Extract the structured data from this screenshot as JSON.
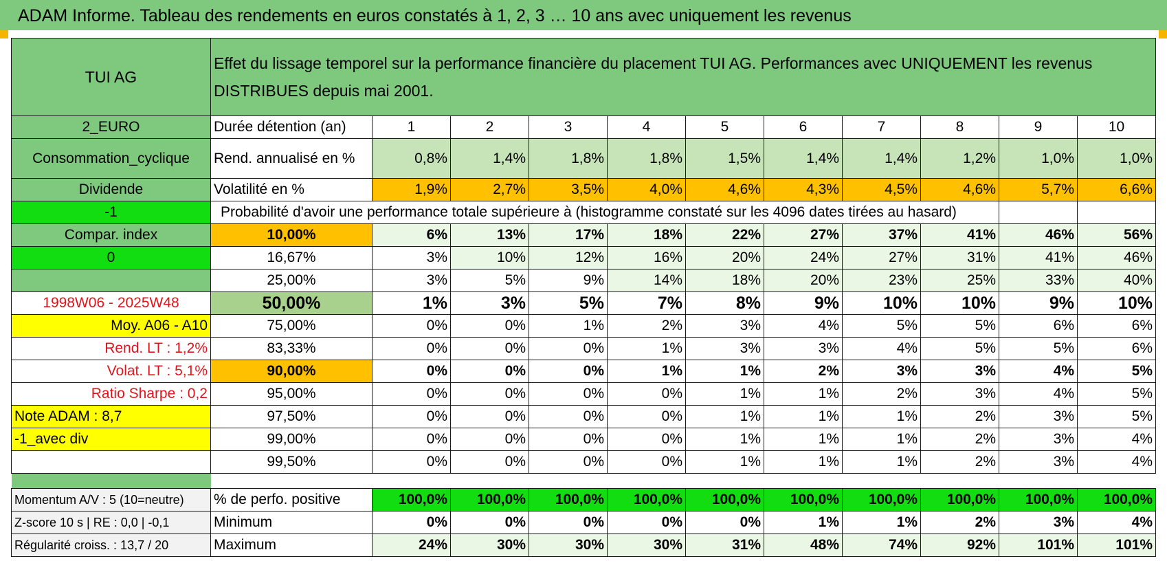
{
  "title": "ADAM Informe. Tableau des rendements en euros constatés à 1, 2, 3 … 10 ans avec uniquement les revenus",
  "colors": {
    "green": "#7fc97f",
    "light_green": "#c6e4b8",
    "very_light_green": "#eaf7e4",
    "bright_green": "#11dd11",
    "orange": "#ffc000",
    "yellow": "#ffff00",
    "red_text": "#e0151c"
  },
  "header": {
    "asset_name": "TUI AG",
    "description": "Effet du lissage temporel sur la performance financière du placement TUI AG. Performances avec UNIQUEMENT les revenus DISTRIBUES depuis mai 2001."
  },
  "sidebar": {
    "currency": "2_EURO",
    "sector": "Consommation_cyclique",
    "dividend": "Dividende",
    "minus_one": "-1",
    "compar_index": "Compar. index",
    "zero": "0",
    "period": "1998W06 - 2025W48",
    "moy": "Moy. A06 - A10",
    "rend_lt": "Rend. LT :    1,2%",
    "volat_lt": "Volat. LT :    5,1%",
    "sharpe": "Ratio Sharpe :    0,2",
    "note": "Note ADAM : 8,7",
    "avec_div": "-1_avec div",
    "momentum": "Momentum A/V : 5 (10=neutre)",
    "zscore": "Z-score 10 s | RE : 0,0 | -0,1",
    "regularite": "Régularité croiss. : 13,7 / 20"
  },
  "row_labels": {
    "duration": "Durée détention (an)",
    "rend": "Rend. annualisé en %",
    "volat": "Volatilité en %",
    "probability": "Probabilité d'avoir une performance totale supérieure à (histogramme constaté sur les 4096 dates tirées au hasard)",
    "pct_positive": "% de perfo. positive",
    "minimum": "Minimum",
    "maximum": "Maximum"
  },
  "years": [
    "1",
    "2",
    "3",
    "4",
    "5",
    "6",
    "7",
    "8",
    "9",
    "10"
  ],
  "rend": [
    "0,8%",
    "1,4%",
    "1,8%",
    "1,8%",
    "1,5%",
    "1,4%",
    "1,4%",
    "1,2%",
    "1,0%",
    "1,0%"
  ],
  "volat": [
    "1,9%",
    "2,7%",
    "3,5%",
    "4,0%",
    "4,6%",
    "4,3%",
    "4,5%",
    "4,6%",
    "5,7%",
    "6,6%"
  ],
  "thresholds": [
    {
      "label": "10,00%",
      "values": [
        "6%",
        "13%",
        "17%",
        "18%",
        "22%",
        "27%",
        "37%",
        "41%",
        "46%",
        "56%"
      ]
    },
    {
      "label": "16,67%",
      "values": [
        "3%",
        "10%",
        "12%",
        "16%",
        "20%",
        "24%",
        "27%",
        "31%",
        "41%",
        "46%"
      ]
    },
    {
      "label": "25,00%",
      "values": [
        "3%",
        "5%",
        "9%",
        "14%",
        "18%",
        "20%",
        "23%",
        "25%",
        "33%",
        "40%"
      ]
    },
    {
      "label": "50,00%",
      "values": [
        "1%",
        "3%",
        "5%",
        "7%",
        "8%",
        "9%",
        "10%",
        "10%",
        "9%",
        "10%"
      ]
    },
    {
      "label": "75,00%",
      "values": [
        "0%",
        "0%",
        "1%",
        "2%",
        "3%",
        "4%",
        "5%",
        "5%",
        "6%",
        "6%"
      ]
    },
    {
      "label": "83,33%",
      "values": [
        "0%",
        "0%",
        "0%",
        "1%",
        "3%",
        "3%",
        "4%",
        "5%",
        "5%",
        "6%"
      ]
    },
    {
      "label": "90,00%",
      "values": [
        "0%",
        "0%",
        "0%",
        "1%",
        "1%",
        "2%",
        "3%",
        "3%",
        "4%",
        "5%"
      ]
    },
    {
      "label": "95,00%",
      "values": [
        "0%",
        "0%",
        "0%",
        "0%",
        "1%",
        "1%",
        "2%",
        "3%",
        "4%",
        "5%"
      ]
    },
    {
      "label": "97,50%",
      "values": [
        "0%",
        "0%",
        "0%",
        "0%",
        "1%",
        "1%",
        "1%",
        "2%",
        "3%",
        "5%"
      ]
    },
    {
      "label": "99,00%",
      "values": [
        "0%",
        "0%",
        "0%",
        "0%",
        "1%",
        "1%",
        "1%",
        "2%",
        "3%",
        "4%"
      ]
    },
    {
      "label": "99,50%",
      "values": [
        "0%",
        "0%",
        "0%",
        "0%",
        "1%",
        "1%",
        "1%",
        "2%",
        "3%",
        "4%"
      ]
    }
  ],
  "pct_positive": [
    "100,0%",
    "100,0%",
    "100,0%",
    "100,0%",
    "100,0%",
    "100,0%",
    "100,0%",
    "100,0%",
    "100,0%",
    "100,0%"
  ],
  "minimum": [
    "0%",
    "0%",
    "0%",
    "0%",
    "0%",
    "1%",
    "1%",
    "2%",
    "3%",
    "4%"
  ],
  "maximum": [
    "24%",
    "30%",
    "30%",
    "30%",
    "31%",
    "48%",
    "74%",
    "92%",
    "101%",
    "101%"
  ]
}
